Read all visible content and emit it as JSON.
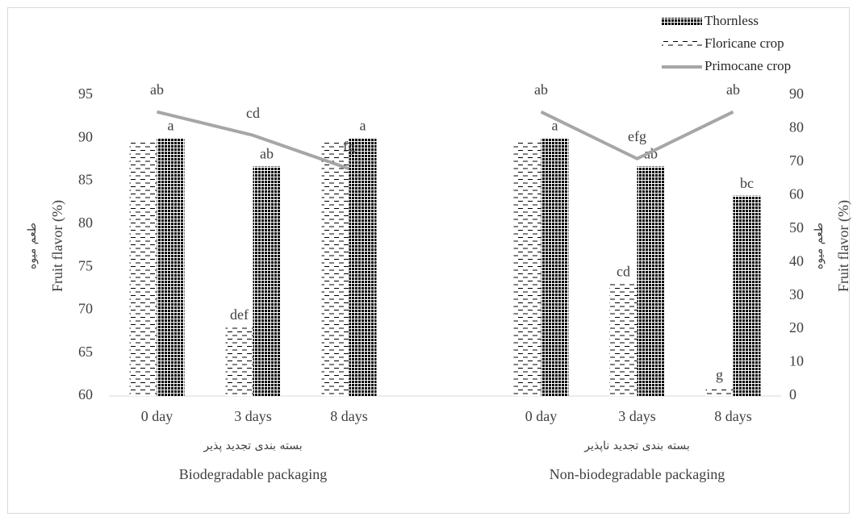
{
  "chart_data": {
    "type": "bar",
    "categories": [
      "0 day",
      "3 days",
      "8 days",
      null,
      "0 day",
      "3 days",
      "8 days"
    ],
    "groups": [
      {
        "label_fa": "بسته بندی تجدید پذیر",
        "label_en": "Biodegradable packaging"
      },
      {
        "label_fa": "بسته بندی تجدید ناپذیر",
        "label_en": "Non-biodegradable packaging"
      }
    ],
    "y_label": "Fruit flavor (%)",
    "y_label_fa": "طعم میوه",
    "y2_label": "Fruit flavor (%)",
    "y2_label_fa": "طعم میوه",
    "ylim": [
      60,
      95
    ],
    "yticks": [
      60,
      65,
      70,
      75,
      80,
      85,
      90,
      95
    ],
    "y2lim": [
      0,
      90
    ],
    "y2ticks": [
      0,
      10,
      20,
      30,
      40,
      50,
      60,
      70,
      80,
      90
    ],
    "series": [
      {
        "name": "Thornless",
        "type": "bar",
        "pattern": "dots",
        "color": "#000000",
        "values": [
          90,
          86.7,
          90,
          null,
          90,
          86.7,
          83.3
        ],
        "letters": [
          "a",
          "ab",
          "a",
          null,
          "a",
          "ab",
          "bc"
        ]
      },
      {
        "name": "Floricane crop",
        "type": "bar",
        "pattern": "dashes",
        "color": "#000000",
        "values": [
          89.5,
          68,
          89.5,
          null,
          89.5,
          73,
          61
        ],
        "letters": [
          null,
          "def",
          null,
          null,
          null,
          "cd",
          "g"
        ]
      },
      {
        "name": "Primocane crop",
        "type": "line",
        "axis": "y2",
        "color": "#a6a6a6",
        "values": [
          85,
          78,
          68,
          null,
          85,
          71,
          85
        ],
        "letters": [
          "ab",
          "cd",
          "fg",
          null,
          "ab",
          "efg",
          "ab"
        ]
      }
    ]
  }
}
